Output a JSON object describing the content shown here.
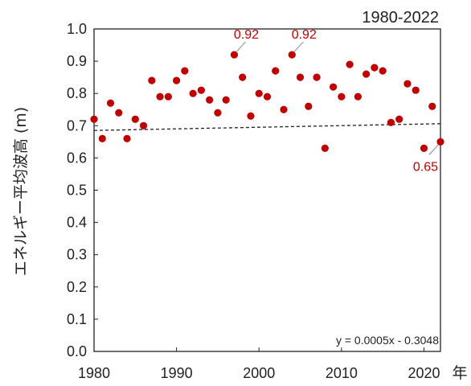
{
  "chart_data": {
    "type": "scatter",
    "period_label": "1980-2022",
    "ylabel": "エネルギー平均波高 (m)",
    "x_unit_label": "年",
    "xlim": [
      1980,
      2022
    ],
    "ylim": [
      0.0,
      1.0
    ],
    "x_ticks": [
      1980,
      1990,
      2000,
      2010,
      2020
    ],
    "x_tick_labels": [
      "1980",
      "1990",
      "2000",
      "2010",
      "2020"
    ],
    "y_ticks": [
      0.0,
      0.1,
      0.2,
      0.3,
      0.4,
      0.5,
      0.6,
      0.7,
      0.8,
      0.9,
      1.0
    ],
    "y_tick_labels": [
      "0.0",
      "0.1",
      "0.2",
      "0.3",
      "0.4",
      "0.5",
      "0.6",
      "0.7",
      "0.8",
      "0.9",
      "1.0"
    ],
    "grid": false,
    "point_color": "#c00000",
    "series": [
      {
        "x": [
          1980,
          1981,
          1982,
          1983,
          1984,
          1985,
          1986,
          1987,
          1988,
          1989,
          1990,
          1991,
          1992,
          1993,
          1994,
          1995,
          1996,
          1997,
          1998,
          1999,
          2000,
          2001,
          2002,
          2003,
          2004,
          2005,
          2006,
          2007,
          2008,
          2009,
          2010,
          2011,
          2012,
          2013,
          2014,
          2015,
          2016,
          2017,
          2018,
          2019,
          2020,
          2021,
          2022
        ],
        "y": [
          0.72,
          0.66,
          0.77,
          0.74,
          0.66,
          0.72,
          0.7,
          0.84,
          0.79,
          0.79,
          0.84,
          0.87,
          0.8,
          0.81,
          0.78,
          0.74,
          0.78,
          0.92,
          0.85,
          0.73,
          0.8,
          0.79,
          0.87,
          0.75,
          0.92,
          0.85,
          0.76,
          0.85,
          0.63,
          0.82,
          0.79,
          0.89,
          0.79,
          0.86,
          0.88,
          0.87,
          0.71,
          0.72,
          0.83,
          0.81,
          0.63,
          0.76,
          0.65
        ]
      }
    ],
    "trendline": {
      "slope": 0.0005,
      "intercept": -0.3048,
      "style": "dashed",
      "color": "#222222"
    },
    "equation_label": "y = 0.0005x - 0.3048",
    "annotations": [
      {
        "x": 1997,
        "y": 0.92,
        "text": "0.92",
        "anchor": "above-right"
      },
      {
        "x": 2004,
        "y": 0.92,
        "text": "0.92",
        "anchor": "above-right"
      },
      {
        "x": 2022,
        "y": 0.65,
        "text": "0.65",
        "anchor": "below-left"
      }
    ]
  }
}
